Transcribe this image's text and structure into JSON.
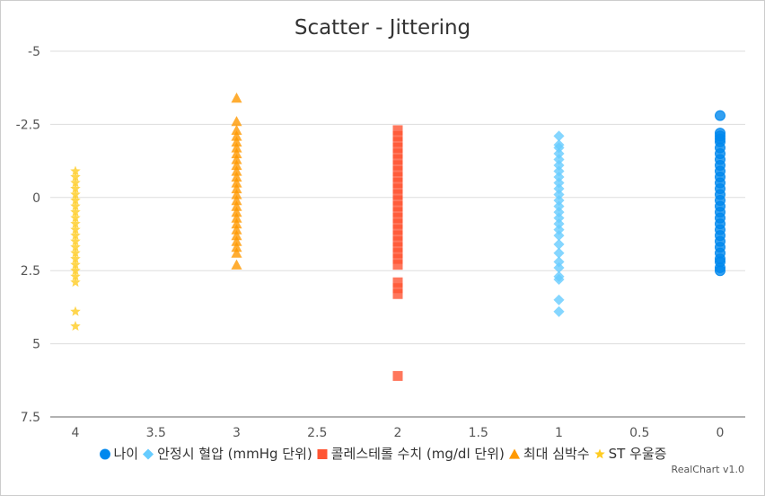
{
  "chart_data": {
    "type": "scatter",
    "title": "Scatter - Jittering",
    "xlabel": "",
    "ylabel": "",
    "xlim": [
      4,
      0
    ],
    "ylim": [
      -5,
      7.5
    ],
    "x_reversed": true,
    "y_reversed": true,
    "x_ticks": [
      "4",
      "3.5",
      "3",
      "2.5",
      "2",
      "1.5",
      "1",
      "0.5",
      "0"
    ],
    "y_ticks": [
      "-5",
      "-2.5",
      "0",
      "2.5",
      "5",
      "7.5"
    ],
    "grid": "horizontal",
    "legend": "bottom",
    "series": [
      {
        "name": "나이",
        "marker": "circle",
        "color": "#0088ee",
        "x": 0,
        "values": [
          -2.8,
          -2.2,
          -2.1,
          -2.0,
          -1.9,
          -1.7,
          -1.5,
          -1.3,
          -1.1,
          -0.9,
          -0.7,
          -0.5,
          -0.3,
          -0.1,
          0.1,
          0.3,
          0.5,
          0.7,
          0.9,
          1.1,
          1.3,
          1.5,
          1.7,
          1.9,
          2.1,
          2.2,
          2.4,
          2.5
        ]
      },
      {
        "name": "안정시 혈압 (mmHg 단위)",
        "marker": "diamond",
        "color": "#66ccff",
        "x": 1,
        "values": [
          -2.1,
          -1.8,
          -1.7,
          -1.5,
          -1.3,
          -1.1,
          -0.9,
          -0.7,
          -0.5,
          -0.3,
          -0.1,
          0.1,
          0.3,
          0.5,
          0.7,
          0.9,
          1.1,
          1.3,
          1.6,
          1.9,
          2.2,
          2.4,
          2.7,
          2.8,
          3.5,
          3.9
        ]
      },
      {
        "name": "콜레스테롤 수치 (mg/dl 단위)",
        "marker": "square",
        "color": "#ff5533",
        "x": 2,
        "values": [
          -2.3,
          -2.1,
          -1.9,
          -1.7,
          -1.5,
          -1.3,
          -1.1,
          -0.9,
          -0.7,
          -0.5,
          -0.3,
          -0.1,
          0.1,
          0.3,
          0.5,
          0.7,
          0.9,
          1.1,
          1.3,
          1.5,
          1.7,
          1.9,
          2.1,
          2.3,
          2.9,
          3.1,
          3.3,
          6.1
        ]
      },
      {
        "name": "최대 심박수",
        "marker": "triangle",
        "color": "#ff9900",
        "x": 3,
        "values": [
          -3.4,
          -2.6,
          -2.3,
          -2.1,
          -1.9,
          -1.7,
          -1.5,
          -1.3,
          -1.1,
          -0.9,
          -0.7,
          -0.5,
          -0.3,
          -0.1,
          0.1,
          0.3,
          0.5,
          0.7,
          0.9,
          1.1,
          1.3,
          1.5,
          1.7,
          1.9,
          2.3
        ]
      },
      {
        "name": "ST 우울증",
        "marker": "star",
        "color": "#ffcc22",
        "x": 4,
        "values": [
          -0.9,
          -0.7,
          -0.5,
          -0.3,
          -0.1,
          0.1,
          0.3,
          0.5,
          0.7,
          0.9,
          1.1,
          1.3,
          1.5,
          1.7,
          1.9,
          2.1,
          2.3,
          2.5,
          2.7,
          2.9,
          3.9,
          4.4
        ]
      }
    ]
  },
  "credit": "RealChart v1.0"
}
